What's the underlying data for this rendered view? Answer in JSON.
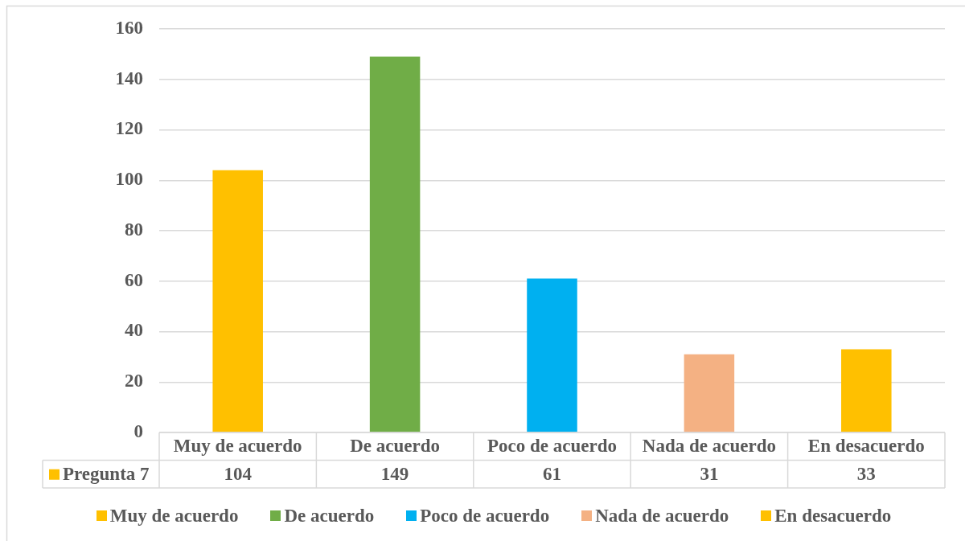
{
  "chart_data": {
    "type": "bar",
    "categories": [
      "Muy de acuerdo",
      "De acuerdo",
      "Poco de acuerdo",
      "Nada de acuerdo",
      "En desacuerdo"
    ],
    "series": [
      {
        "name": "Pregunta 7",
        "color": "#ffc000",
        "colors": [
          "#ffc000",
          "#70ad47",
          "#00b0f0",
          "#f4b183",
          "#ffc000"
        ],
        "values": [
          104,
          149,
          61,
          31,
          33
        ]
      }
    ],
    "ylim": [
      0,
      160
    ],
    "yticks": [
      0,
      20,
      40,
      60,
      80,
      100,
      120,
      140,
      160
    ],
    "grid": "y",
    "legend": "bottom",
    "data_labels": true
  }
}
